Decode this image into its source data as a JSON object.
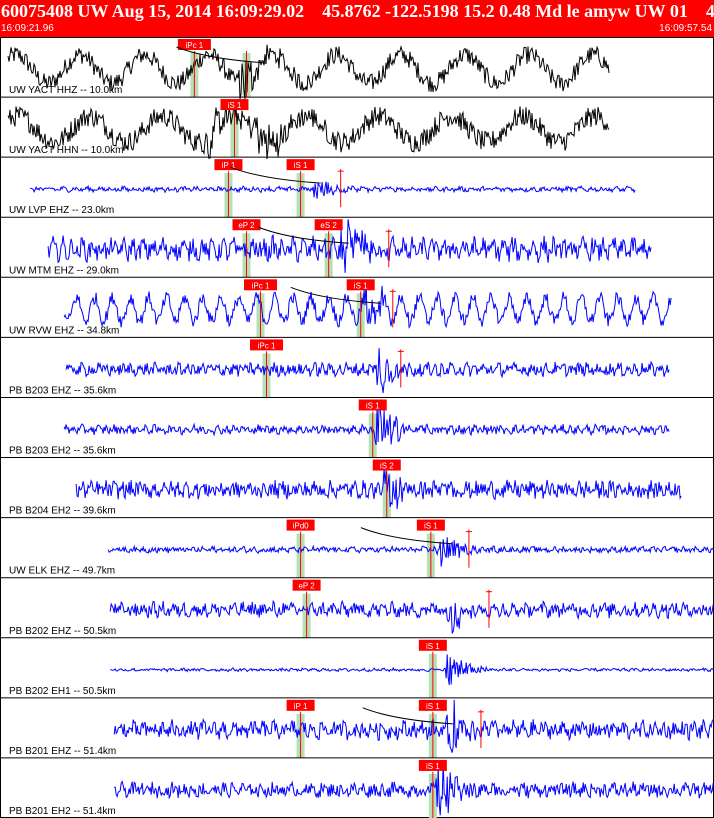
{
  "header": {
    "title": "60075408 UW Aug 15, 2014 16:09:29.02    45.8762 -122.5198 15.2 0.48 Md le amyw UW 01    4",
    "start_time": "16:09:21.96",
    "end_time": "16:09:57.54",
    "bg_color": "#ff0000"
  },
  "colors": {
    "trace_default": "#0000ff",
    "trace_dark": "#000000",
    "pick_box": "#ff0000",
    "pick_band": "#b5e0b5",
    "curve": "#000000"
  },
  "chart_data": {
    "type": "line",
    "time_start": "16:09:21.96",
    "time_end": "16:09:57.54",
    "traces": [
      {
        "label": "UW YACT HHZ -- 10.0km",
        "color": "black",
        "amp": 0.55,
        "noise": 0.35,
        "wave_t": 3.2,
        "data_start": 0.4,
        "data_end": 30.4,
        "picks": [
          {
            "text": "iPc 1",
            "t": 9.7
          },
          {
            "text": "",
            "t": 12.3
          }
        ],
        "events": [
          {
            "t": 12.0,
            "amp": 0.8
          }
        ]
      },
      {
        "label": "UW YACT HHN -- 10.0km",
        "color": "black",
        "amp": 0.5,
        "noise": 0.4,
        "wave_t": 3.6,
        "data_start": 0.4,
        "data_end": 30.4,
        "picks": [
          {
            "text": "iS 1",
            "t": 11.7
          }
        ],
        "events": [
          {
            "t": 10.4,
            "amp": 0.7
          },
          {
            "t": 12.8,
            "amp": 0.9
          }
        ]
      },
      {
        "label": "UW LVP EHZ -- 23.0km",
        "color": "blue",
        "amp": 0.04,
        "noise": 0.08,
        "wave_t": 0.6,
        "data_start": 1.5,
        "data_end": 31.7,
        "picks": [
          {
            "text": "iP 1",
            "t": 11.4
          },
          {
            "text": "iS 1",
            "t": 15.0
          }
        ],
        "events": [
          {
            "t": 15.8,
            "amp": 0.4
          }
        ],
        "marker": {
          "t": 17.0
        }
      },
      {
        "label": "UW MTM EHZ -- 29.0km",
        "color": "blue",
        "amp": 0.2,
        "noise": 0.35,
        "wave_t": 0.5,
        "data_start": 2.4,
        "data_end": 32.5,
        "picks": [
          {
            "text": "eP 2",
            "t": 12.3
          },
          {
            "text": "eS 2",
            "t": 16.4
          }
        ],
        "events": [
          {
            "t": 17.2,
            "amp": 0.9
          }
        ],
        "marker": {
          "t": 19.4
        }
      },
      {
        "label": "UW RVW EHZ -- 34.8km",
        "color": "blue",
        "amp": 0.45,
        "noise": 0.25,
        "wave_t": 0.9,
        "data_start": 3.2,
        "data_end": 33.5,
        "picks": [
          {
            "text": "iPc 1",
            "t": 13.0
          },
          {
            "text": "iS 1",
            "t": 18.0
          }
        ],
        "events": [
          {
            "t": 18.3,
            "amp": 0.6
          }
        ],
        "marker": {
          "t": 19.6
        }
      },
      {
        "label": "PB B203 EHZ -- 35.6km",
        "color": "blue",
        "amp": 0.08,
        "noise": 0.22,
        "wave_t": 0.4,
        "data_start": 3.3,
        "data_end": 33.4,
        "picks": [
          {
            "text": "iPc 1",
            "t": 13.3
          }
        ],
        "events": [
          {
            "t": 18.9,
            "amp": 0.7
          }
        ],
        "marker": {
          "t": 20.0
        }
      },
      {
        "label": "PB B203 EH2 -- 35.6km",
        "color": "blue",
        "amp": 0.06,
        "noise": 0.15,
        "wave_t": 0.4,
        "data_start": 3.2,
        "data_end": 33.4,
        "picks": [
          {
            "text": "iS 1",
            "t": 18.6
          }
        ],
        "events": [
          {
            "t": 18.9,
            "amp": 0.9
          }
        ]
      },
      {
        "label": "PB B204 EH2 -- 39.6km",
        "color": "blue",
        "amp": 0.08,
        "noise": 0.3,
        "wave_t": 0.4,
        "data_start": 3.8,
        "data_end": 34.0,
        "picks": [
          {
            "text": "iS 2",
            "t": 19.3
          }
        ],
        "events": [
          {
            "t": 19.3,
            "amp": 0.8
          }
        ]
      },
      {
        "label": "UW ELK EHZ -- 49.7km",
        "color": "blue",
        "amp": 0.04,
        "noise": 0.1,
        "wave_t": 0.5,
        "data_start": 5.4,
        "data_end": 35.6,
        "picks": [
          {
            "text": "iPd0",
            "t": 15.0
          },
          {
            "text": "iS 1",
            "t": 21.5
          }
        ],
        "events": [
          {
            "t": 22.0,
            "amp": 0.5
          }
        ],
        "marker": {
          "t": 23.4
        }
      },
      {
        "label": "PB B202 EHZ -- 50.5km",
        "color": "blue",
        "amp": 0.1,
        "noise": 0.25,
        "wave_t": 0.5,
        "data_start": 5.5,
        "data_end": 35.6,
        "picks": [
          {
            "text": "eP 2",
            "t": 15.3
          }
        ],
        "events": [
          {
            "t": 22.5,
            "amp": 0.6
          }
        ],
        "marker": {
          "t": 24.4
        }
      },
      {
        "label": "PB B202 EH1 -- 50.5km",
        "color": "blue",
        "amp": 0.02,
        "noise": 0.05,
        "wave_t": 0.5,
        "data_start": 5.5,
        "data_end": 35.6,
        "picks": [
          {
            "text": "iS 1",
            "t": 21.6
          }
        ],
        "events": [
          {
            "t": 22.4,
            "amp": 0.6
          }
        ]
      },
      {
        "label": "PB B201 EHZ -- 51.4km",
        "color": "blue",
        "amp": 0.12,
        "noise": 0.3,
        "wave_t": 0.5,
        "data_start": 5.7,
        "data_end": 35.6,
        "picks": [
          {
            "text": "iP 1",
            "t": 15.0
          },
          {
            "text": "iS 1",
            "t": 21.6
          }
        ],
        "events": [
          {
            "t": 22.5,
            "amp": 0.7
          }
        ],
        "marker": {
          "t": 24.0
        }
      },
      {
        "label": "PB B201 EH2 -- 51.4km",
        "color": "blue",
        "amp": 0.08,
        "noise": 0.25,
        "wave_t": 0.5,
        "data_start": 5.7,
        "data_end": 35.6,
        "picks": [
          {
            "text": "iS 1",
            "t": 21.6
          }
        ],
        "events": [
          {
            "t": 22.0,
            "amp": 0.9
          }
        ]
      }
    ]
  }
}
